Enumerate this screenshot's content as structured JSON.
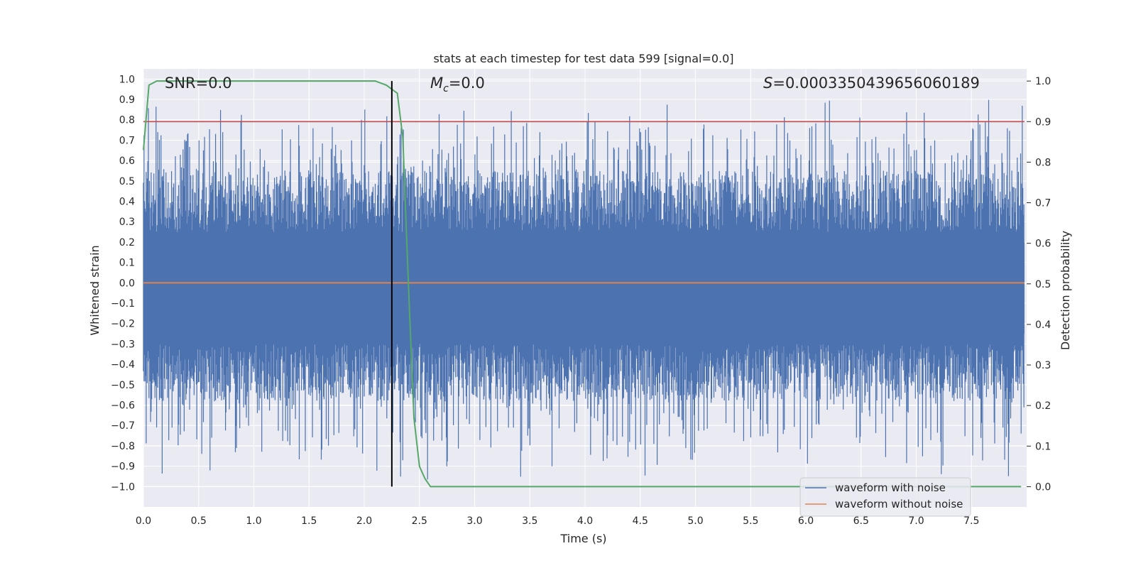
{
  "chart_data": {
    "type": "line",
    "title": "stats at each timestep for test data 599 [signal=0.0]",
    "xlabel": "Time (s)",
    "ylabel": "Whitened strain",
    "y2label": "Detection probability",
    "xlim": [
      0.0,
      8.0
    ],
    "ylim": [
      -1.1,
      1.05
    ],
    "y2lim": [
      -0.05,
      1.03
    ],
    "x_ticks": [
      0.0,
      0.5,
      1.0,
      1.5,
      2.0,
      2.5,
      3.0,
      3.5,
      4.0,
      4.5,
      5.0,
      5.5,
      6.0,
      6.5,
      7.0,
      7.5
    ],
    "x_tick_labels": [
      "0.0",
      "0.5",
      "1.0",
      "1.5",
      "2.0",
      "2.5",
      "3.0",
      "3.5",
      "4.0",
      "4.5",
      "5.0",
      "5.5",
      "6.0",
      "6.5",
      "7.0",
      "7.5"
    ],
    "y_ticks": [
      1.0,
      0.9,
      0.8,
      0.7,
      0.6,
      0.5,
      0.4,
      0.3,
      0.2,
      0.1,
      0.0,
      -0.1,
      -0.2,
      -0.3,
      -0.4,
      -0.5,
      -0.6,
      -0.7,
      -0.8,
      -0.9,
      -1.0
    ],
    "y_tick_labels": [
      "1.0",
      "0.9",
      "0.8",
      "0.7",
      "0.6",
      "0.5",
      "0.4",
      "0.3",
      "0.2",
      "0.1",
      "0.0",
      "−0.1",
      "−0.2",
      "−0.3",
      "−0.4",
      "−0.5",
      "−0.6",
      "−0.7",
      "−0.8",
      "−0.9",
      "−1.0"
    ],
    "y2_ticks": [
      1.0,
      0.9,
      0.8,
      0.7,
      0.6,
      0.5,
      0.4,
      0.3,
      0.2,
      0.1,
      0.0
    ],
    "y2_tick_labels": [
      "1.0",
      "0.9",
      "0.8",
      "0.7",
      "0.6",
      "0.5",
      "0.4",
      "0.3",
      "0.2",
      "0.1",
      "0.0"
    ],
    "annotations": {
      "snr": "SNR=0.0",
      "mc_symbol": "M",
      "mc_subscript": "c",
      "mc_value": "=0.0",
      "s_symbol": "S",
      "s_value": "=0.000335043965606018​9"
    },
    "series": [
      {
        "name": "waveform with noise",
        "color": "#4c72b0",
        "axis": "left",
        "description": "noisy whitened strain spanning roughly -1.0 to 0.95 across 0-8 s",
        "peak_values": [
          0.95,
          -0.98
        ]
      },
      {
        "name": "waveform without noise",
        "color": "#dd8452",
        "axis": "left",
        "constant_value": 0.0
      },
      {
        "name": "detection probability",
        "color": "#55a868",
        "axis": "right",
        "x": [
          0.0,
          0.05,
          0.12,
          0.2,
          0.5,
          1.0,
          1.5,
          2.0,
          2.1,
          2.2,
          2.3,
          2.35,
          2.4,
          2.45,
          2.5,
          2.55,
          2.6,
          2.7,
          3.0,
          4.0,
          5.0,
          6.0,
          7.0,
          7.95
        ],
        "values": [
          0.83,
          0.99,
          1.0,
          1.0,
          1.0,
          1.0,
          1.0,
          1.0,
          1.0,
          0.99,
          0.97,
          0.86,
          0.5,
          0.17,
          0.05,
          0.02,
          0.0,
          0.0,
          0.0,
          0.0,
          0.0,
          0.0,
          0.0,
          0.0
        ]
      },
      {
        "name": "threshold",
        "color": "#c44e52",
        "axis": "right",
        "constant_value": 0.9
      },
      {
        "name": "marker",
        "color": "#000000",
        "axis": "right",
        "vertical_at_x": 2.25,
        "span": [
          0.0,
          1.0
        ]
      }
    ],
    "legend": {
      "position": "bottom-right",
      "entries": [
        {
          "label": "waveform with noise",
          "color": "#4c72b0"
        },
        {
          "label": "waveform without noise",
          "color": "#dd8452"
        }
      ]
    }
  }
}
